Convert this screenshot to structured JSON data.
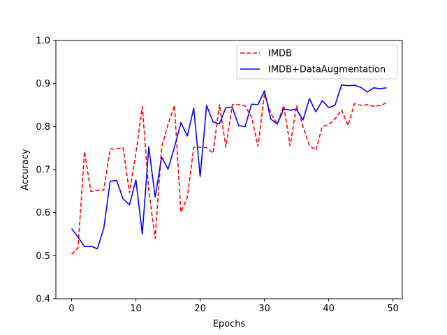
{
  "chart_data": {
    "type": "line",
    "title": "",
    "xlabel": "Epochs",
    "ylabel": "Accuracy",
    "xlim": [
      -2.45,
      51.45
    ],
    "ylim": [
      0.4,
      1.0
    ],
    "xticks": [
      0,
      10,
      20,
      30,
      40,
      50
    ],
    "yticks": [
      0.4,
      0.5,
      0.6,
      0.7,
      0.8,
      0.9,
      1.0
    ],
    "grid": false,
    "legend_position": "top-right",
    "x": [
      0,
      1,
      2,
      3,
      4,
      5,
      6,
      7,
      8,
      9,
      10,
      11,
      12,
      13,
      14,
      15,
      16,
      17,
      18,
      19,
      20,
      21,
      22,
      23,
      24,
      25,
      26,
      27,
      28,
      29,
      30,
      31,
      32,
      33,
      34,
      35,
      36,
      37,
      38,
      39,
      40,
      41,
      42,
      43,
      44,
      45,
      46,
      47,
      48,
      49
    ],
    "series": [
      {
        "name": "IMDB",
        "color": "#ff0000",
        "style": "dashed",
        "values": [
          0.503,
          0.518,
          0.742,
          0.649,
          0.652,
          0.652,
          0.748,
          0.748,
          0.751,
          0.646,
          0.738,
          0.846,
          0.652,
          0.54,
          0.752,
          0.805,
          0.849,
          0.601,
          0.635,
          0.752,
          0.752,
          0.751,
          0.738,
          0.851,
          0.752,
          0.851,
          0.851,
          0.848,
          0.822,
          0.754,
          0.875,
          0.83,
          0.806,
          0.849,
          0.755,
          0.849,
          0.8,
          0.756,
          0.745,
          0.8,
          0.804,
          0.818,
          0.839,
          0.802,
          0.853,
          0.849,
          0.851,
          0.847,
          0.849,
          0.855
        ]
      },
      {
        "name": "IMDB+DataAugmentation",
        "color": "#0000ff",
        "style": "solid",
        "values": [
          0.563,
          0.543,
          0.521,
          0.522,
          0.516,
          0.563,
          0.673,
          0.675,
          0.632,
          0.618,
          0.676,
          0.55,
          0.753,
          0.636,
          0.729,
          0.701,
          0.752,
          0.809,
          0.778,
          0.843,
          0.684,
          0.849,
          0.811,
          0.806,
          0.844,
          0.845,
          0.802,
          0.8,
          0.852,
          0.851,
          0.883,
          0.817,
          0.806,
          0.841,
          0.838,
          0.84,
          0.815,
          0.865,
          0.834,
          0.86,
          0.844,
          0.85,
          0.897,
          0.895,
          0.896,
          0.891,
          0.88,
          0.89,
          0.888,
          0.89
        ]
      }
    ]
  }
}
